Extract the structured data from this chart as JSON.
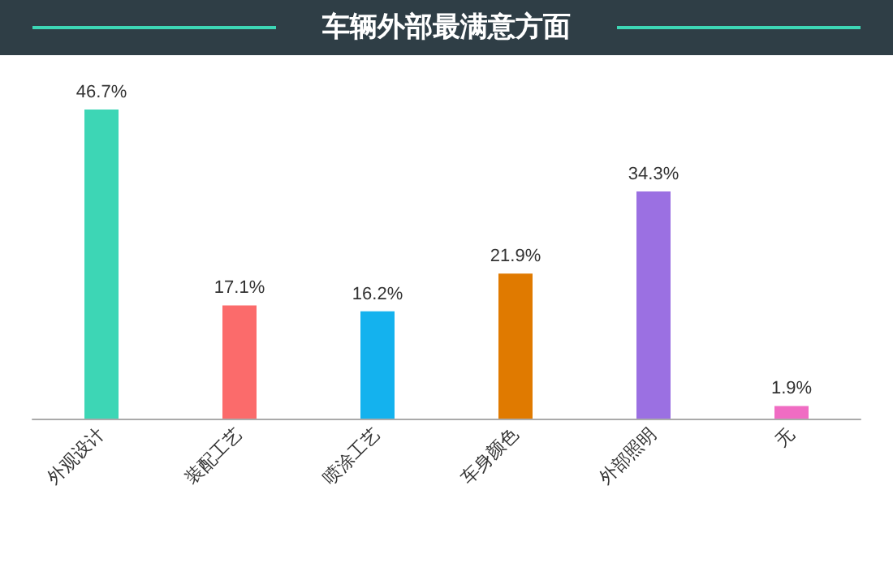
{
  "chart_data": {
    "type": "bar",
    "title": "车辆外部最满意方面",
    "categories": [
      "外观设计",
      "装配工艺",
      "喷涂工艺",
      "车身颜色",
      "外部照明",
      "无"
    ],
    "values": [
      46.7,
      17.1,
      16.2,
      21.9,
      34.3,
      1.9
    ],
    "value_labels": [
      "46.7%",
      "17.1%",
      "16.2%",
      "21.9%",
      "34.3%",
      "1.9%"
    ],
    "colors": [
      "#3dd6b5",
      "#fb6b6b",
      "#14b2ee",
      "#e07a00",
      "#9b70e2",
      "#f06cc3"
    ]
  }
}
